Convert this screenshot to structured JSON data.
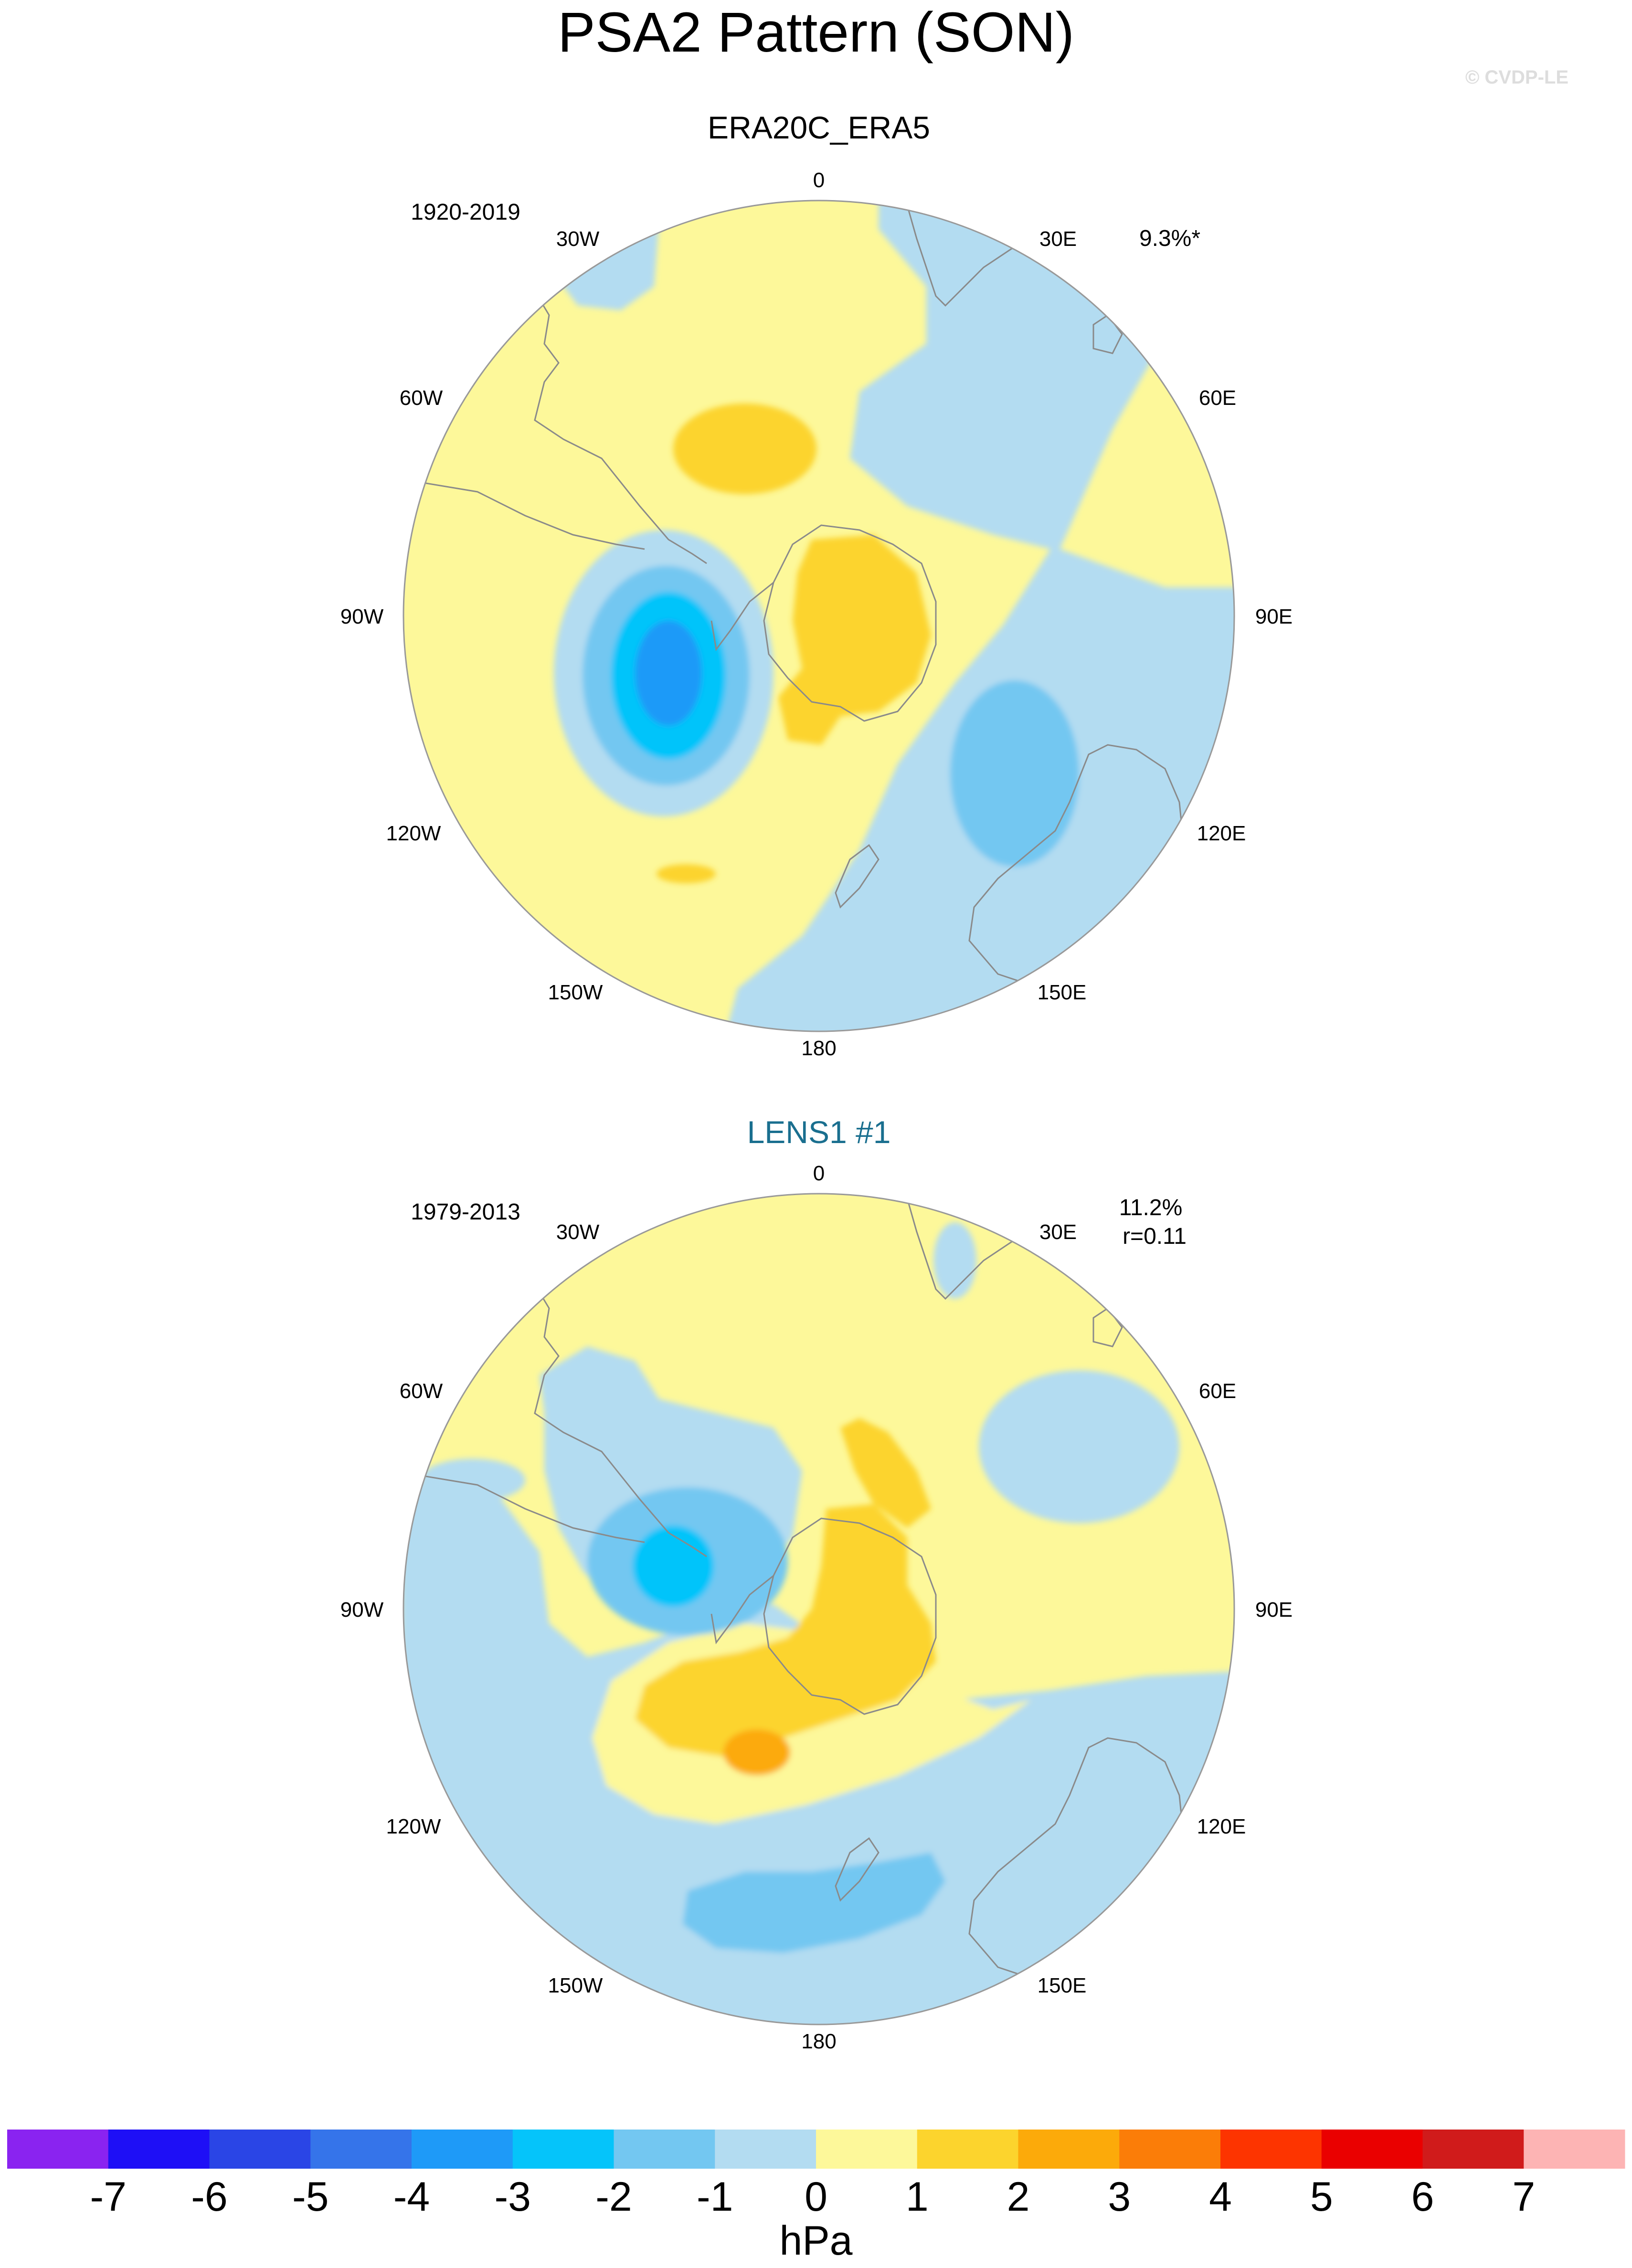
{
  "title": "PSA2 Pattern (SON)",
  "copyright": "© CVDP-LE",
  "panels": [
    {
      "name": "ERA20C_ERA5",
      "years": "1920-2019",
      "stat_line1": "9.3%*",
      "stat_line2": ""
    },
    {
      "name": "LENS1 #1",
      "years": "1979-2013",
      "stat_line1": "11.2%",
      "stat_line2": "r=0.11"
    }
  ],
  "longitude_labels": {
    "lon_0": "0",
    "lon_30e": "30E",
    "lon_60e": "60E",
    "lon_90e": "90E",
    "lon_120e": "120E",
    "lon_150e": "150E",
    "lon_180": "180",
    "lon_150w": "150W",
    "lon_120w": "120W",
    "lon_90w": "90W",
    "lon_60w": "60W",
    "lon_30w": "30W"
  },
  "colorbar": {
    "unit_label": "hPa",
    "ticks": [
      "-7",
      "-6",
      "-5",
      "-4",
      "-3",
      "-2",
      "-1",
      "0",
      "1",
      "2",
      "3",
      "4",
      "5",
      "6",
      "7"
    ],
    "colors": [
      "#8a23f0",
      "#1e0ff6",
      "#2a45e6",
      "#3574ea",
      "#1e9af8",
      "#05c4fa",
      "#73c7f1",
      "#b3dcf1",
      "#fdf89a",
      "#fcd42d",
      "#fcaa0a",
      "#fb7d08",
      "#fd3400",
      "#ea0000",
      "#d01b1b",
      "#fdb4b4"
    ]
  },
  "colors": {
    "title_panel_2": "#1a6f8f",
    "map_border": "#999999",
    "coastline": "#8a8a8a"
  }
}
